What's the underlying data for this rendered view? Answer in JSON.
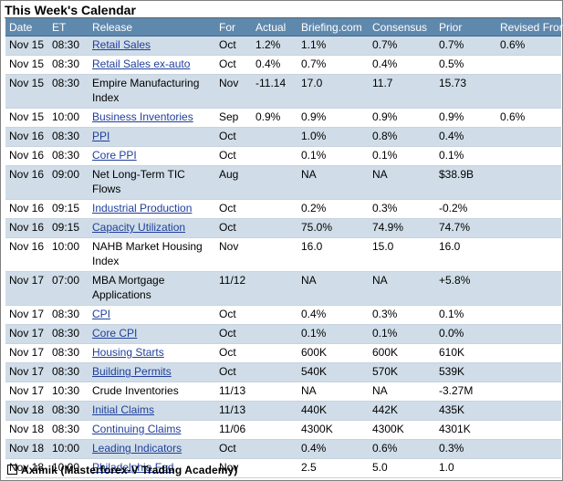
{
  "title": "This Week's Calendar",
  "columns": [
    "Date",
    "ET",
    "Release",
    "For",
    "Actual",
    "Briefing.com",
    "Consensus",
    "Prior",
    "Revised From"
  ],
  "rows": [
    {
      "date": "Nov 15",
      "et": "08:30",
      "release": "Retail Sales",
      "link": true,
      "for": "Oct",
      "actual": "1.2%",
      "briefing": "1.1%",
      "consensus": "0.7%",
      "prior": "0.7%",
      "revised": "0.6%"
    },
    {
      "date": "Nov 15",
      "et": "08:30",
      "release": "Retail Sales ex-auto",
      "link": true,
      "for": "Oct",
      "actual": "0.4%",
      "briefing": "0.7%",
      "consensus": "0.4%",
      "prior": "0.5%",
      "revised": ""
    },
    {
      "date": "Nov 15",
      "et": "08:30",
      "release": "Empire Manufacturing Index",
      "link": false,
      "for": "Nov",
      "actual": "-11.14",
      "briefing": "17.0",
      "consensus": "11.7",
      "prior": "15.73",
      "revised": ""
    },
    {
      "date": "Nov 15",
      "et": "10:00",
      "release": "Business Inventories",
      "link": true,
      "for": "Sep",
      "actual": "0.9%",
      "briefing": "0.9%",
      "consensus": "0.9%",
      "prior": "0.9%",
      "revised": "0.6%"
    },
    {
      "date": "Nov 16",
      "et": "08:30",
      "release": "PPI",
      "link": true,
      "for": "Oct",
      "actual": "",
      "briefing": "1.0%",
      "consensus": "0.8%",
      "prior": "0.4%",
      "revised": ""
    },
    {
      "date": "Nov 16",
      "et": "08:30",
      "release": "Core PPI",
      "link": true,
      "for": "Oct",
      "actual": "",
      "briefing": "0.1%",
      "consensus": "0.1%",
      "prior": "0.1%",
      "revised": ""
    },
    {
      "date": "Nov 16",
      "et": "09:00",
      "release": "Net Long-Term TIC Flows",
      "link": false,
      "for": "Aug",
      "actual": "",
      "briefing": "NA",
      "consensus": "NA",
      "prior": "$38.9B",
      "revised": ""
    },
    {
      "date": "Nov 16",
      "et": "09:15",
      "release": "Industrial Production",
      "link": true,
      "for": "Oct",
      "actual": "",
      "briefing": "0.2%",
      "consensus": "0.3%",
      "prior": "-0.2%",
      "revised": ""
    },
    {
      "date": "Nov 16",
      "et": "09:15",
      "release": "Capacity Utilization",
      "link": true,
      "for": "Oct",
      "actual": "",
      "briefing": "75.0%",
      "consensus": "74.9%",
      "prior": "74.7%",
      "revised": ""
    },
    {
      "date": "Nov 16",
      "et": "10:00",
      "release": "NAHB Market Housing Index",
      "link": false,
      "for": "Nov",
      "actual": "",
      "briefing": "16.0",
      "consensus": "15.0",
      "prior": "16.0",
      "revised": ""
    },
    {
      "date": "Nov 17",
      "et": "07:00",
      "release": "MBA Mortgage Applications",
      "link": false,
      "for": "11/12",
      "actual": "",
      "briefing": "NA",
      "consensus": "NA",
      "prior": "+5.8%",
      "revised": ""
    },
    {
      "date": "Nov 17",
      "et": "08:30",
      "release": "CPI",
      "link": true,
      "for": "Oct",
      "actual": "",
      "briefing": "0.4%",
      "consensus": "0.3%",
      "prior": "0.1%",
      "revised": ""
    },
    {
      "date": "Nov 17",
      "et": "08:30",
      "release": "Core CPI",
      "link": true,
      "for": "Oct",
      "actual": "",
      "briefing": "0.1%",
      "consensus": "0.1%",
      "prior": "0.0%",
      "revised": ""
    },
    {
      "date": "Nov 17",
      "et": "08:30",
      "release": "Housing Starts",
      "link": true,
      "for": "Oct",
      "actual": "",
      "briefing": "600K",
      "consensus": "600K",
      "prior": "610K",
      "revised": ""
    },
    {
      "date": "Nov 17",
      "et": "08:30",
      "release": "Building Permits",
      "link": true,
      "for": "Oct",
      "actual": "",
      "briefing": "540K",
      "consensus": "570K",
      "prior": "539K",
      "revised": ""
    },
    {
      "date": "Nov 17",
      "et": "10:30",
      "release": "Crude Inventories",
      "link": false,
      "for": "11/13",
      "actual": "",
      "briefing": "NA",
      "consensus": "NA",
      "prior": "-3.27M",
      "revised": ""
    },
    {
      "date": "Nov 18",
      "et": "08:30",
      "release": "Initial Claims",
      "link": true,
      "for": "11/13",
      "actual": "",
      "briefing": "440K",
      "consensus": "442K",
      "prior": "435K",
      "revised": ""
    },
    {
      "date": "Nov 18",
      "et": "08:30",
      "release": "Continuing Claims",
      "link": true,
      "for": "11/06",
      "actual": "",
      "briefing": "4300K",
      "consensus": "4300K",
      "prior": "4301K",
      "revised": ""
    },
    {
      "date": "Nov 18",
      "et": "10:00",
      "release": "Leading Indicators",
      "link": true,
      "for": "Oct",
      "actual": "",
      "briefing": "0.4%",
      "consensus": "0.6%",
      "prior": "0.3%",
      "revised": ""
    },
    {
      "date": "Nov 18",
      "et": "10:00",
      "release": "Philadelphia Fed",
      "link": true,
      "for": "Nov",
      "actual": "",
      "briefing": "2.5",
      "consensus": "5.0",
      "prior": "1.0",
      "revised": ""
    }
  ],
  "footer": "Aximik (Masterforex-V Trading Academy)",
  "colors": {
    "header_bg": "#5f88ad",
    "stripe": "#d0dde8",
    "link": "#1f3f9c"
  }
}
